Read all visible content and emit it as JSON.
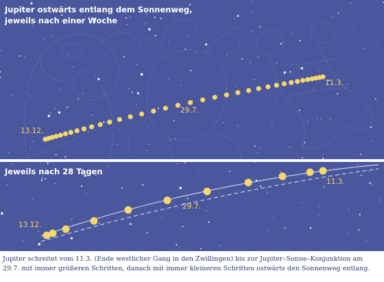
{
  "top_panel": {
    "title_line1": "Jupiter ostwärts entlang dem Sonnenweg,",
    "title_line2": "jeweils nach einer Woche",
    "labels": [
      "13.12.",
      "29.7.",
      "11.3."
    ],
    "colors": {
      "background": "#4a579c",
      "dots": "#f5d76e",
      "stars": "#ffffff"
    }
  },
  "bottom_panel": {
    "title": "Jeweils nach 28 Tagen",
    "labels": [
      "13.12.",
      "29.7.",
      "11.3."
    ]
  },
  "caption": {
    "line1": "Jupiter schreitet vom 11.3. (Ende westlicher Gang in den Zwillingen) bis zur Jupiter–Sonne–Konjunktion am",
    "line2": "29.7. mit immer größeren Schritten, danach mit immer kleineren Schritten ostwärts den Sonnenweg entlang."
  }
}
